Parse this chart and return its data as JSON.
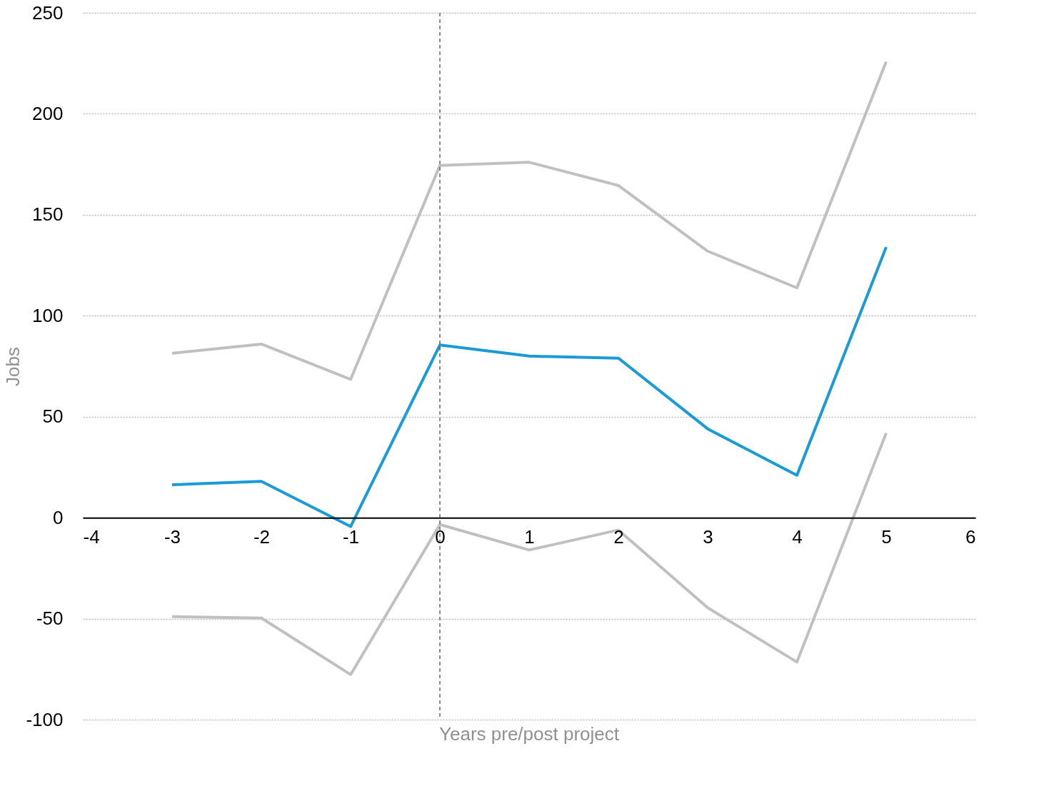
{
  "chart_data": {
    "type": "line",
    "xlabel": "Years pre/post project",
    "ylabel": "Jobs",
    "x": [
      -3,
      -2,
      -1,
      0,
      1,
      2,
      3,
      4,
      5
    ],
    "series": [
      {
        "color": "#c0c0c0",
        "values": [
          81.4,
          86,
          68.5,
          174.4,
          176,
          164.5,
          132,
          113.8,
          225.8
        ]
      },
      {
        "color": "#1a9ad6",
        "values": [
          16.3,
          18,
          -4.4,
          85.5,
          80,
          79,
          44,
          21,
          134
        ]
      },
      {
        "color": "#c0c0c0",
        "values": [
          -49,
          -49.7,
          -77.7,
          -3.4,
          -16,
          -6.1,
          -44.6,
          -71.5,
          41.9
        ]
      }
    ],
    "xlim": [
      -4,
      6
    ],
    "xticks": [
      -4,
      -3,
      -2,
      -1,
      0,
      1,
      2,
      3,
      4,
      5,
      6
    ],
    "ylim": [
      -100,
      250
    ],
    "yticks": [
      -100,
      -50,
      0,
      50,
      100,
      150,
      200,
      250
    ],
    "ref_lines": [
      {
        "axis": "x",
        "value": 0,
        "color": "#404040",
        "line_style": "dashed"
      }
    ],
    "grid": "y",
    "legend": false,
    "marker": "none",
    "line_style": "solid"
  }
}
